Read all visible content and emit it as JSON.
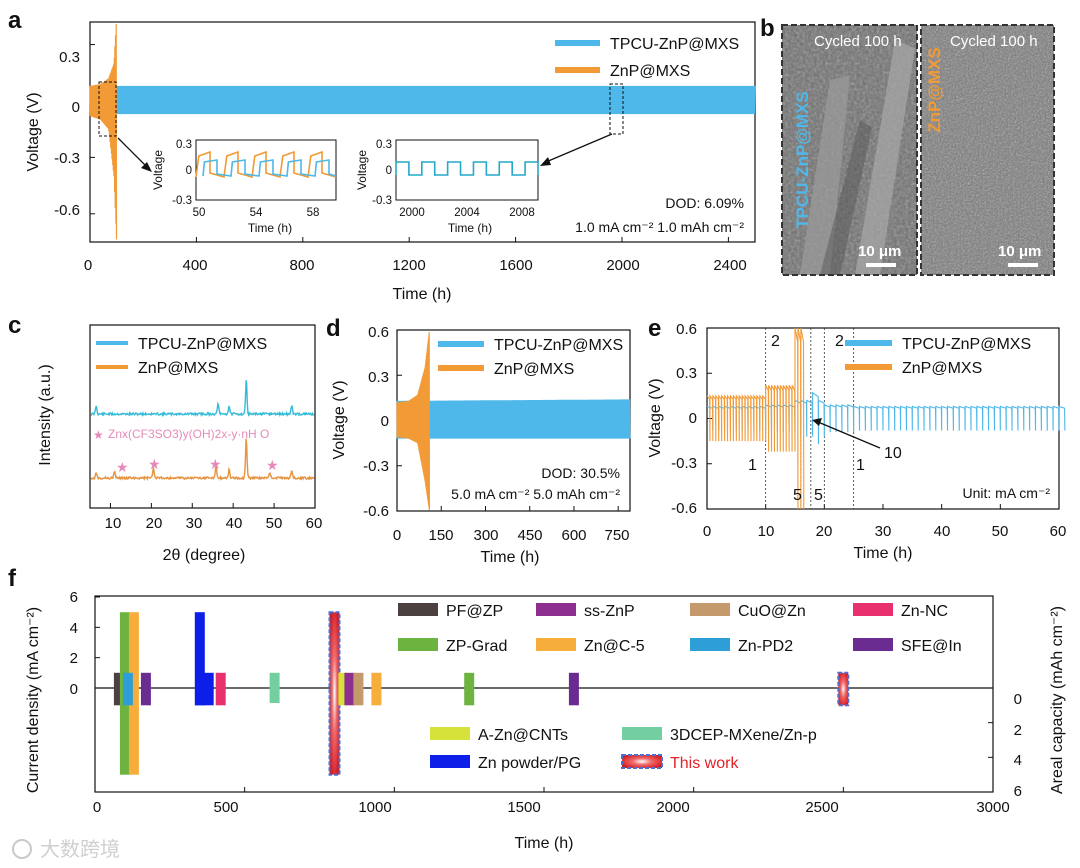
{
  "colors": {
    "tpcu": "#4fb8ea",
    "znp": "#f29a36",
    "this_work": "#e0222a",
    "this_work_border": "#4f6fd0",
    "sem_bg": "#6e6e6e"
  },
  "watermark": "大数跨境",
  "panels": {
    "a": {
      "letter": "a",
      "xlabel": "Time (h)",
      "ylabel": "Voltage (V)",
      "xticks": [
        "0",
        "400",
        "800",
        "1200",
        "1600",
        "2000",
        "2400"
      ],
      "yticks": [
        "0.3",
        "0",
        "-0.3",
        "-0.6"
      ],
      "legend": [
        "TPCU-ZnP@MXS",
        "ZnP@MXS"
      ],
      "dod": "DOD: 6.09%",
      "condition": "1.0 mA cm⁻² 1.0 mAh cm⁻²",
      "inset1": {
        "xlabel": "Time (h)",
        "ylabel": "Voltage",
        "xticks": [
          "50",
          "54",
          "58"
        ],
        "yticks": [
          "0.3",
          "0",
          "-0.3"
        ]
      },
      "inset2": {
        "xlabel": "Time (h)",
        "ylabel": "Voltage",
        "xticks": [
          "2000",
          "2004",
          "2008"
        ],
        "yticks": [
          "0.3",
          "0",
          "-0.3"
        ]
      }
    },
    "b": {
      "letter": "b",
      "left_label": "TPCU-ZnP@MXS",
      "right_label": "ZnP@MXS",
      "left_caption": "Cycled 100 h",
      "right_caption": "Cycled 100 h",
      "left_scale": "10 μm",
      "right_scale": "10 μm"
    },
    "c": {
      "letter": "c",
      "xlabel": "2θ (degree)",
      "ylabel": "Intensity (a.u.)",
      "xticks": [
        "10",
        "20",
        "30",
        "40",
        "50",
        "60"
      ],
      "legend": [
        "TPCU-ZnP@MXS",
        "ZnP@MXS"
      ],
      "star_label": "Znx(CF3SO3)y(OH)2x-y·nH O"
    },
    "d": {
      "letter": "d",
      "xlabel": "Time (h)",
      "ylabel": "Voltage (V)",
      "xticks": [
        "0",
        "150",
        "300",
        "450",
        "600",
        "750"
      ],
      "yticks": [
        "0.6",
        "0.3",
        "0",
        "-0.3",
        "-0.6"
      ],
      "legend": [
        "TPCU-ZnP@MXS",
        "ZnP@MXS"
      ],
      "dod": "DOD: 30.5%",
      "condition": "5.0 mA cm⁻² 5.0 mAh cm⁻²"
    },
    "e": {
      "letter": "e",
      "xlabel": "Time (h)",
      "ylabel": "Voltage (V)",
      "xticks": [
        "0",
        "10",
        "20",
        "30",
        "40",
        "50",
        "60"
      ],
      "yticks": [
        "0.6",
        "0.3",
        "0",
        "-0.3",
        "-0.6"
      ],
      "legend": [
        "TPCU-ZnP@MXS",
        "ZnP@MXS"
      ],
      "unit": "Unit: mA cm⁻²",
      "region_labels": [
        "1",
        "2",
        "5",
        "5",
        "10",
        "2",
        "1"
      ]
    },
    "f": {
      "letter": "f",
      "xlabel": "Time (h)",
      "ylabel_left": "Current density (mA cm⁻²)",
      "ylabel_right": "Areal capacity (mAh cm⁻²)",
      "xticks": [
        "0",
        "500",
        "1000",
        "1500",
        "2000",
        "2500",
        "3000"
      ],
      "yticks_left": [
        "6",
        "4",
        "2",
        "0"
      ],
      "yticks_right": [
        "0",
        "2",
        "4",
        "6"
      ]
    }
  },
  "chart_data": [
    {
      "panel": "a",
      "type": "line",
      "xlabel": "Time (h)",
      "ylabel": "Voltage (V)",
      "xlim": [
        0,
        2500
      ],
      "ylim": [
        -0.75,
        0.42
      ],
      "series": [
        {
          "name": "TPCU-ZnP@MXS",
          "x": [
            0,
            2500
          ],
          "y_upper": [
            0.08,
            0.08
          ],
          "y_lower": [
            -0.07,
            -0.07
          ]
        },
        {
          "name": "ZnP@MXS",
          "x": [
            0,
            40,
            70,
            90,
            100
          ],
          "y_upper": [
            0.08,
            0.09,
            0.12,
            0.2,
            0.45
          ],
          "y_lower": [
            -0.08,
            -0.1,
            -0.15,
            -0.4,
            -0.75
          ]
        }
      ]
    },
    {
      "panel": "c",
      "type": "line",
      "xlabel": "2θ (degree)",
      "ylabel": "Intensity (a.u.)",
      "xlim": [
        5,
        60
      ],
      "series": [
        {
          "name": "TPCU-ZnP@MXS",
          "peaks_2theta": [
            6.5,
            36.3,
            39.0,
            43.2,
            54.3
          ]
        },
        {
          "name": "ZnP@MXS",
          "peaks_2theta": [
            6.5,
            11.0,
            20.5,
            35.8,
            39.0,
            43.2,
            49.0,
            54.3
          ]
        }
      ]
    },
    {
      "panel": "d",
      "type": "line",
      "xlabel": "Time (h)",
      "ylabel": "Voltage (V)",
      "xlim": [
        0,
        790
      ],
      "ylim": [
        -0.6,
        0.6
      ],
      "series": [
        {
          "name": "TPCU-ZnP@MXS",
          "x": [
            0,
            790
          ],
          "y_upper": [
            0.13,
            0.14
          ],
          "y_lower": [
            -0.12,
            -0.12
          ]
        },
        {
          "name": "ZnP@MXS",
          "x": [
            0,
            40,
            70,
            95,
            110
          ],
          "y_upper": [
            0.12,
            0.13,
            0.17,
            0.35,
            0.6
          ],
          "y_lower": [
            -0.11,
            -0.12,
            -0.15,
            -0.4,
            -0.6
          ]
        }
      ]
    },
    {
      "panel": "e",
      "type": "line",
      "xlabel": "Time (h)",
      "ylabel": "Voltage (V)",
      "xlim": [
        0,
        60
      ],
      "ylim": [
        -0.6,
        0.6
      ],
      "current_regions": [
        {
          "current": 1,
          "x": [
            0,
            10
          ]
        },
        {
          "current": 2,
          "x": [
            10,
            15
          ]
        },
        {
          "current": 5,
          "x": [
            15,
            17.5
          ]
        },
        {
          "current": 10,
          "x": [
            17.5,
            19
          ]
        },
        {
          "current": 5,
          "x": [
            19,
            20
          ]
        },
        {
          "current": 2,
          "x": [
            20,
            25
          ]
        },
        {
          "current": 1,
          "x": [
            25,
            60
          ]
        }
      ],
      "series": [
        {
          "name": "TPCU-ZnP@MXS",
          "amplitude_by_current": {
            "1": 0.08,
            "2": 0.09,
            "5": 0.12,
            "10": 0.17
          }
        },
        {
          "name": "ZnP@MXS",
          "amplitude_by_current": {
            "1": 0.15,
            "2": 0.22,
            "5": 0.6
          },
          "fails_at": 16
        }
      ]
    },
    {
      "panel": "f",
      "type": "bar",
      "xlabel": "Time (h)",
      "ylabel": "Current density (mA cm⁻²)",
      "ylabel_right": "Areal capacity (mAh cm⁻²)",
      "xlim": [
        0,
        3000
      ],
      "ylim": [
        0,
        6
      ],
      "ylim_right": [
        0,
        6
      ],
      "series": [
        {
          "name": "PF@ZP",
          "color": "#4a4140",
          "time_h": 80,
          "current": 1,
          "capacity": 1
        },
        {
          "name": "ZP-Grad",
          "color": "#6db33f",
          "time_h": 100,
          "current": 5,
          "capacity": 5
        },
        {
          "name": "Zn@C-5",
          "color": "#f6ad3c",
          "time_h": 130,
          "current": 5,
          "capacity": 5
        },
        {
          "name": "Zn-PD2",
          "color": "#2e9fd6",
          "time_h": 110,
          "current": 1,
          "capacity": 1
        },
        {
          "name": "SFE@In",
          "color": "#6a2c91",
          "time_h": 170,
          "current": 1,
          "capacity": 1
        },
        {
          "name": "SFE@In",
          "color": "#6a2c91",
          "time_h": 1600,
          "current": 1,
          "capacity": 1
        },
        {
          "name": "Zn powder/PG",
          "color": "#0d1ee8",
          "time_h": 350,
          "current": 5,
          "capacity": 1
        },
        {
          "name": "Zn powder/PG",
          "color": "#0d1ee8",
          "time_h": 380,
          "current": 1,
          "capacity": 1
        },
        {
          "name": "Zn-NC",
          "color": "#e8306f",
          "time_h": 420,
          "current": 1,
          "capacity": 1
        },
        {
          "name": "3DCEP-MXene/Zn-p",
          "color": "#74cfa0",
          "time_h": 600,
          "current": 1,
          "capacity": 0
        },
        {
          "name": "This work",
          "color": "#e0222a",
          "time_h": 800,
          "current": 5,
          "capacity": 5
        },
        {
          "name": "A-Zn@CNTs",
          "color": "#d6e23a",
          "time_h": 830,
          "current": 1,
          "capacity": 1
        },
        {
          "name": "ss-ZnP",
          "color": "#8c2f8f",
          "time_h": 850,
          "current": 1,
          "capacity": 1
        },
        {
          "name": "CuO@Zn",
          "color": "#c49a6c",
          "time_h": 880,
          "current": 1,
          "capacity": 1
        },
        {
          "name": "Zn@C-5",
          "color": "#f6ad3c",
          "time_h": 940,
          "current": 1,
          "capacity": 1
        },
        {
          "name": "ZP-Grad",
          "color": "#6db33f",
          "time_h": 1250,
          "current": 1,
          "capacity": 1
        },
        {
          "name": "This work",
          "color": "#e0222a",
          "time_h": 2500,
          "current": 1,
          "capacity": 1
        }
      ],
      "legend": [
        "PF@ZP",
        "ss-ZnP",
        "CuO@Zn",
        "Zn-NC",
        "ZP-Grad",
        "Zn@C-5",
        "Zn-PD2",
        "SFE@In",
        "A-Zn@CNTs",
        "3DCEP-MXene/Zn-p",
        "Zn powder/PG",
        "This work"
      ]
    }
  ]
}
